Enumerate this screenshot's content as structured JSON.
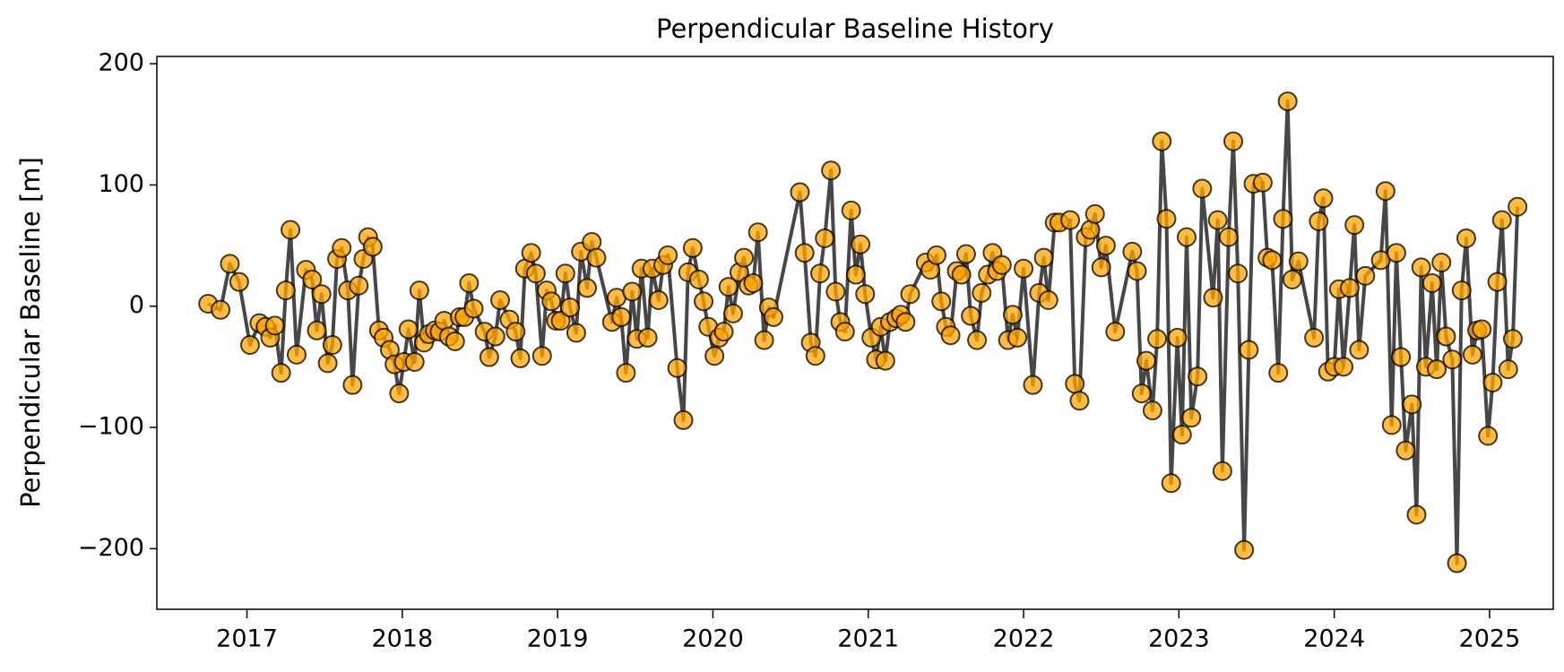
{
  "chart_data": {
    "type": "line",
    "title": "Perpendicular Baseline History",
    "y_label": "Perpendicular Baseline [m]",
    "line_color": "#333333",
    "marker_color": "#ffa500",
    "xlim": [
      2016.42,
      2025.41
    ],
    "xticks": [
      2017,
      2018,
      2019,
      2020,
      2021,
      2022,
      2023,
      2024,
      2025
    ],
    "ylim": [
      -250,
      206
    ],
    "yticks": [
      {
        "value": -200,
        "label": "−200"
      },
      {
        "value": -100,
        "label": "−100"
      },
      0,
      100,
      200
    ],
    "x": [
      2016.75,
      2016.83,
      2016.89,
      2016.95,
      2017.02,
      2017.08,
      2017.12,
      2017.15,
      2017.18,
      2017.22,
      2017.25,
      2017.28,
      2017.32,
      2017.38,
      2017.42,
      2017.45,
      2017.48,
      2017.52,
      2017.55,
      2017.58,
      2017.61,
      2017.65,
      2017.68,
      2017.72,
      2017.75,
      2017.78,
      2017.81,
      2017.85,
      2017.88,
      2017.92,
      2017.95,
      2017.98,
      2018.01,
      2018.04,
      2018.08,
      2018.11,
      2018.14,
      2018.17,
      2018.21,
      2018.24,
      2018.27,
      2018.3,
      2018.34,
      2018.37,
      2018.4,
      2018.43,
      2018.46,
      2018.53,
      2018.56,
      2018.6,
      2018.63,
      2018.69,
      2018.73,
      2018.76,
      2018.79,
      2018.83,
      2018.86,
      2018.9,
      2018.93,
      2018.96,
      2018.99,
      2019.02,
      2019.05,
      2019.08,
      2019.12,
      2019.15,
      2019.19,
      2019.22,
      2019.25,
      2019.35,
      2019.38,
      2019.41,
      2019.44,
      2019.48,
      2019.51,
      2019.54,
      2019.58,
      2019.61,
      2019.65,
      2019.68,
      2019.71,
      2019.77,
      2019.81,
      2019.84,
      2019.87,
      2019.91,
      2019.94,
      2019.97,
      2020.01,
      2020.04,
      2020.07,
      2020.1,
      2020.13,
      2020.17,
      2020.2,
      2020.23,
      2020.26,
      2020.29,
      2020.33,
      2020.36,
      2020.39,
      2020.56,
      2020.59,
      2020.63,
      2020.66,
      2020.69,
      2020.72,
      2020.76,
      2020.79,
      2020.82,
      2020.85,
      2020.89,
      2020.92,
      2020.95,
      2020.98,
      2021.02,
      2021.05,
      2021.08,
      2021.11,
      2021.14,
      2021.18,
      2021.21,
      2021.24,
      2021.27,
      2021.37,
      2021.4,
      2021.44,
      2021.47,
      2021.5,
      2021.53,
      2021.57,
      2021.6,
      2021.63,
      2021.66,
      2021.7,
      2021.73,
      2021.77,
      2021.8,
      2021.83,
      2021.86,
      2021.9,
      2021.93,
      2021.96,
      2022.0,
      2022.06,
      2022.1,
      2022.13,
      2022.16,
      2022.2,
      2022.23,
      2022.3,
      2022.33,
      2022.36,
      2022.4,
      2022.43,
      2022.46,
      2022.5,
      2022.53,
      2022.59,
      2022.7,
      2022.73,
      2022.76,
      2022.79,
      2022.83,
      2022.86,
      2022.89,
      2022.92,
      2022.95,
      2022.99,
      2023.02,
      2023.05,
      2023.08,
      2023.12,
      2023.15,
      2023.22,
      2023.25,
      2023.28,
      2023.32,
      2023.35,
      2023.38,
      2023.42,
      2023.45,
      2023.48,
      2023.54,
      2023.57,
      2023.6,
      2023.64,
      2023.67,
      2023.7,
      2023.73,
      2023.77,
      2023.87,
      2023.9,
      2023.93,
      2023.96,
      2024.0,
      2024.03,
      2024.06,
      2024.1,
      2024.13,
      2024.16,
      2024.2,
      2024.3,
      2024.33,
      2024.37,
      2024.4,
      2024.43,
      2024.46,
      2024.5,
      2024.53,
      2024.56,
      2024.59,
      2024.63,
      2024.66,
      2024.69,
      2024.72,
      2024.76,
      2024.79,
      2024.82,
      2024.85,
      2024.89,
      2024.92,
      2024.95,
      2024.99,
      2025.02,
      2025.05,
      2025.08,
      2025.12,
      2025.15,
      2025.18
    ],
    "values": [
      2,
      -3,
      35,
      20,
      -32,
      -14,
      -17,
      -26,
      -16,
      -55,
      13,
      63,
      -40,
      30,
      22,
      -20,
      10,
      -47,
      -32,
      39,
      48,
      13,
      -65,
      17,
      39,
      57,
      49,
      -20,
      -26,
      -36,
      -48,
      -72,
      -46,
      -19,
      -46,
      13,
      -30,
      -23,
      -20,
      -21,
      -12,
      -25,
      -29,
      -9,
      -9,
      19,
      -2,
      -21,
      -42,
      -25,
      5,
      -11,
      -21,
      -43,
      31,
      44,
      27,
      -41,
      13,
      4,
      -12,
      -12,
      27,
      -1,
      -22,
      45,
      15,
      53,
      40,
      -13,
      7,
      -9,
      -55,
      12,
      -27,
      31,
      -26,
      31,
      5,
      34,
      42,
      -51,
      -94,
      28,
      48,
      22,
      4,
      -17,
      -41,
      -26,
      -21,
      16,
      -6,
      28,
      40,
      17,
      19,
      61,
      -28,
      -1,
      -9,
      94,
      44,
      -30,
      -41,
      27,
      56,
      112,
      12,
      -13,
      -21,
      79,
      26,
      51,
      10,
      -26,
      -44,
      -17,
      -45,
      -13,
      -10,
      -7,
      -13,
      10,
      36,
      30,
      42,
      4,
      -17,
      -24,
      29,
      26,
      43,
      -8,
      -28,
      11,
      26,
      44,
      29,
      34,
      -28,
      -7,
      -26,
      31,
      -65,
      11,
      40,
      5,
      69,
      69,
      71,
      -64,
      -78,
      57,
      63,
      76,
      32,
      50,
      -21,
      45,
      29,
      -72,
      -45,
      -86,
      -27,
      136,
      72,
      -146,
      -26,
      -106,
      57,
      -92,
      -58,
      97,
      7,
      71,
      -136,
      57,
      136,
      27,
      -201,
      -36,
      101,
      102,
      40,
      38,
      -55,
      72,
      169,
      22,
      37,
      -26,
      70,
      89,
      -54,
      -50,
      14,
      -50,
      15,
      67,
      -36,
      25,
      38,
      95,
      -98,
      44,
      -42,
      -119,
      -81,
      -172,
      32,
      -50,
      19,
      -52,
      36,
      -25,
      -44,
      -212,
      13,
      56,
      -40,
      -20,
      -19,
      -107,
      -63,
      20,
      71,
      -52,
      -27,
      82
    ]
  }
}
